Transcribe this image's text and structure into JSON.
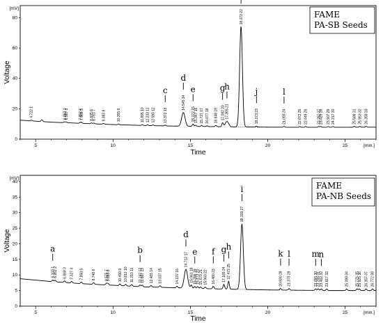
{
  "chart_data": [
    {
      "type": "line",
      "legend_lines": [
        "FAME",
        "PA-SB Seeds"
      ],
      "yunit": "[mV]",
      "xunit": "[min.]",
      "xlabel": "Time",
      "ylabel": "Voltage",
      "xlim": [
        4,
        27
      ],
      "ylim": [
        0,
        88
      ],
      "xticks": [
        5,
        10,
        15,
        20,
        25
      ],
      "yticks": [
        0,
        20,
        40,
        60,
        80
      ],
      "baseline": [
        [
          4,
          12.5
        ],
        [
          6,
          11.2
        ],
        [
          8,
          10.4
        ],
        [
          10,
          9.6
        ],
        [
          12,
          9.0
        ],
        [
          14,
          8.6
        ],
        [
          16,
          8.3
        ],
        [
          18,
          8.1
        ],
        [
          20,
          7.9
        ],
        [
          22,
          7.8
        ],
        [
          24,
          7.8
        ],
        [
          27,
          7.9
        ]
      ],
      "peaks": [
        {
          "rt": 4.722,
          "num": "1",
          "h": 0.5,
          "letter": ""
        },
        {
          "rt": 5.4,
          "num": "",
          "h": 1.2,
          "letter": ""
        },
        {
          "rt": 6.862,
          "num": "2",
          "h": 0.5,
          "letter": ""
        },
        {
          "rt": 6.987,
          "num": "3",
          "h": 0.5,
          "letter": ""
        },
        {
          "rt": 7.892,
          "num": "4",
          "h": 0.5,
          "letter": ""
        },
        {
          "rt": 7.969,
          "num": "5",
          "h": 0.5,
          "letter": ""
        },
        {
          "rt": 8.605,
          "num": "6",
          "h": 0.5,
          "letter": ""
        },
        {
          "rt": 8.763,
          "num": "7",
          "h": 0.5,
          "letter": ""
        },
        {
          "rt": 9.383,
          "num": "8",
          "h": 0.5,
          "letter": ""
        },
        {
          "rt": 10.355,
          "num": "9",
          "h": 0.5,
          "letter": ""
        },
        {
          "rt": 11.895,
          "num": "10",
          "h": 0.5,
          "letter": ""
        },
        {
          "rt": 12.233,
          "num": "11",
          "h": 0.5,
          "letter": ""
        },
        {
          "rt": 12.59,
          "num": "12",
          "h": 0.5,
          "letter": ""
        },
        {
          "rt": 13.372,
          "num": "13",
          "h": 0.5,
          "letter": "c"
        },
        {
          "rt": 14.545,
          "num": "14",
          "h": 9,
          "letter": "d"
        },
        {
          "rt": 15.172,
          "num": "15",
          "h": 1.5,
          "letter": "e"
        },
        {
          "rt": 15.347,
          "num": "16",
          "h": 0.8,
          "letter": ""
        },
        {
          "rt": 15.727,
          "num": "17",
          "h": 0.6,
          "letter": ""
        },
        {
          "rt": 16.077,
          "num": "18",
          "h": 0.5,
          "letter": ""
        },
        {
          "rt": 16.648,
          "num": "19",
          "h": 0.8,
          "letter": ""
        },
        {
          "rt": 17.082,
          "num": "20",
          "h": 2.5,
          "letter": "g"
        },
        {
          "rt": 17.365,
          "num": "21",
          "h": 3.5,
          "letter": "h"
        },
        {
          "rt": 18.273,
          "num": "22",
          "h": 66,
          "letter": "i"
        },
        {
          "rt": 19.273,
          "num": "23",
          "h": 0.6,
          "letter": "j"
        },
        {
          "rt": 21.055,
          "num": "24",
          "h": 0.5,
          "letter": "l"
        },
        {
          "rt": 22.072,
          "num": "25",
          "h": 0.5,
          "letter": ""
        },
        {
          "rt": 22.449,
          "num": "26",
          "h": 0.5,
          "letter": ""
        },
        {
          "rt": 23.297,
          "num": "27",
          "h": 0.5,
          "letter": ""
        },
        {
          "rt": 23.429,
          "num": "28",
          "h": 0.5,
          "letter": ""
        },
        {
          "rt": 23.907,
          "num": "29",
          "h": 0.5,
          "letter": ""
        },
        {
          "rt": 24.217,
          "num": "30",
          "h": 0.5,
          "letter": ""
        },
        {
          "rt": 25.588,
          "num": "31",
          "h": 0.5,
          "letter": ""
        },
        {
          "rt": 25.953,
          "num": "32",
          "h": 0.5,
          "letter": ""
        },
        {
          "rt": 26.359,
          "num": "33",
          "h": 0.5,
          "letter": ""
        }
      ]
    },
    {
      "type": "line",
      "legend_lines": [
        "FAME",
        "PA-NB Seeds"
      ],
      "yunit": "[mV]",
      "xunit": "[min.]",
      "xlabel": "Time",
      "ylabel": "Voltage",
      "xlim": [
        4,
        27
      ],
      "ylim": [
        0,
        42
      ],
      "xticks": [
        5,
        10,
        15,
        20,
        25
      ],
      "yticks": [
        0,
        5,
        10,
        15,
        20,
        25,
        30,
        35,
        40
      ],
      "baseline": [
        [
          4,
          8.8
        ],
        [
          6,
          7.9
        ],
        [
          8,
          7.2
        ],
        [
          10,
          6.7
        ],
        [
          12,
          6.2
        ],
        [
          14,
          5.9
        ],
        [
          16,
          5.6
        ],
        [
          18,
          5.4
        ],
        [
          20,
          5.2
        ],
        [
          22,
          5.1
        ],
        [
          24,
          5.0
        ],
        [
          27,
          5.0
        ]
      ],
      "peaks": [
        {
          "rt": 6.103,
          "num": "1",
          "h": 0.5,
          "letter": "a"
        },
        {
          "rt": 6.262,
          "num": "2",
          "h": 0.5,
          "letter": ""
        },
        {
          "rt": 6.868,
          "num": "3",
          "h": 0.5,
          "letter": ""
        },
        {
          "rt": 7.327,
          "num": "4",
          "h": 0.5,
          "letter": ""
        },
        {
          "rt": 7.95,
          "num": "5",
          "h": 0.5,
          "letter": ""
        },
        {
          "rt": 8.748,
          "num": "6",
          "h": 0.5,
          "letter": ""
        },
        {
          "rt": 9.575,
          "num": "7",
          "h": 0.5,
          "letter": ""
        },
        {
          "rt": 9.68,
          "num": "8",
          "h": 0.5,
          "letter": ""
        },
        {
          "rt": 10.45,
          "num": "9",
          "h": 0.5,
          "letter": ""
        },
        {
          "rt": 10.812,
          "num": "10",
          "h": 0.5,
          "letter": ""
        },
        {
          "rt": 11.213,
          "num": "11",
          "h": 0.5,
          "letter": ""
        },
        {
          "rt": 11.747,
          "num": "12",
          "h": 0.5,
          "letter": "b"
        },
        {
          "rt": 11.887,
          "num": "13",
          "h": 0.5,
          "letter": ""
        },
        {
          "rt": 12.465,
          "num": "14",
          "h": 0.5,
          "letter": ""
        },
        {
          "rt": 13.037,
          "num": "15",
          "h": 0.5,
          "letter": ""
        },
        {
          "rt": 14.137,
          "num": "16",
          "h": 0.5,
          "letter": ""
        },
        {
          "rt": 14.712,
          "num": "17",
          "h": 6,
          "letter": "d"
        },
        {
          "rt": 15.061,
          "num": "18",
          "h": 1,
          "letter": ""
        },
        {
          "rt": 15.286,
          "num": "19",
          "h": 0.6,
          "letter": "e"
        },
        {
          "rt": 15.472,
          "num": "20",
          "h": 0.6,
          "letter": ""
        },
        {
          "rt": 15.67,
          "num": "21",
          "h": 0.5,
          "letter": ""
        },
        {
          "rt": 15.96,
          "num": "22",
          "h": 0.5,
          "letter": ""
        },
        {
          "rt": 16.48,
          "num": "23",
          "h": 0.8,
          "letter": "f"
        },
        {
          "rt": 17.165,
          "num": "24",
          "h": 1.5,
          "letter": "g"
        },
        {
          "rt": 17.472,
          "num": "25",
          "h": 2.5,
          "letter": "h"
        },
        {
          "rt": 18.333,
          "num": "27",
          "h": 21,
          "letter": "i"
        },
        {
          "rt": 20.83,
          "num": "28",
          "h": 0.5,
          "letter": "k"
        },
        {
          "rt": 21.375,
          "num": "29",
          "h": 0.5,
          "letter": "l"
        },
        {
          "rt": 23.095,
          "num": "30",
          "h": 0.5,
          "letter": "m"
        },
        {
          "rt": 23.266,
          "num": "31",
          "h": 0.5,
          "letter": ""
        },
        {
          "rt": 23.462,
          "num": "32",
          "h": 0.5,
          "letter": "n"
        },
        {
          "rt": 23.817,
          "num": "33",
          "h": 0.5,
          "letter": ""
        },
        {
          "rt": 25.099,
          "num": "34",
          "h": 0.5,
          "letter": ""
        },
        {
          "rt": 25.775,
          "num": "35",
          "h": 0.5,
          "letter": ""
        },
        {
          "rt": 25.925,
          "num": "36",
          "h": 0.5,
          "letter": ""
        },
        {
          "rt": 26.357,
          "num": "37",
          "h": 0.5,
          "letter": ""
        },
        {
          "rt": 26.772,
          "num": "38",
          "h": 0.5,
          "letter": ""
        }
      ]
    }
  ]
}
